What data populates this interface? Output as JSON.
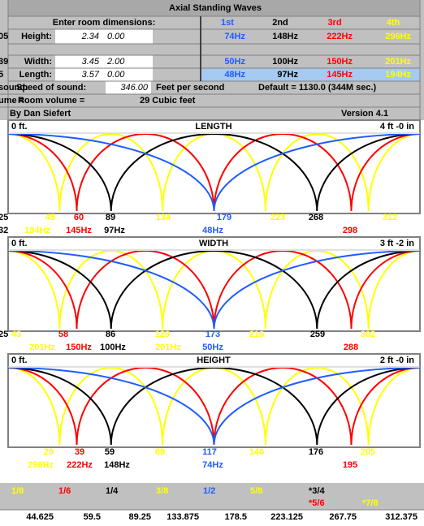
{
  "title": "Axial Standing Waves",
  "inputs": {
    "prompt": "Enter room dimensions:",
    "rows": [
      {
        "label": "Height:",
        "feet": "2.34",
        "inches": "0.00"
      },
      {
        "label": "Width:",
        "feet": "3.45",
        "inches": "2.00"
      },
      {
        "label": "Length:",
        "feet": "3.57",
        "inches": "0.00"
      }
    ]
  },
  "harmonics": {
    "headers": [
      "1st",
      "2nd",
      "3rd",
      "4th"
    ],
    "colors": [
      "#1f5cff",
      "#000000",
      "#ff0000",
      "#ffff00"
    ],
    "rows": [
      [
        "74Hz",
        "148Hz",
        "222Hz",
        "296Hz"
      ],
      [
        "50Hz",
        "100Hz",
        "150Hz",
        "201Hz"
      ],
      [
        "48Hz",
        "97Hz",
        "145Hz",
        "194Hz"
      ]
    ]
  },
  "speed": {
    "label": "Speed of sound:",
    "value": "346.00",
    "unit": "Feet per second",
    "default": "Default = 1130.0 (344M sec.)"
  },
  "volume": {
    "label": "Room volume =",
    "value": "29 Cubic feet"
  },
  "credits": {
    "author": "By Dan Siefert",
    "version": "Version 4.1"
  },
  "edge": [
    "05",
    "39",
    "5",
    "sound:",
    "ume =",
    "25",
    "32",
    "25"
  ],
  "plots": [
    {
      "start": "0 ft.",
      "title": "LENGTH",
      "end": "4 ft -0 in",
      "positions": [
        {
          "text": "45",
          "color": "#ffff00"
        },
        {
          "text": "60",
          "color": "#ff0000"
        },
        {
          "text": "89",
          "color": "#000000"
        },
        {
          "text": "134",
          "color": "#ffff00"
        },
        {
          "text": "179",
          "color": "#1f5cff"
        },
        {
          "text": "223",
          "color": "#ffff00"
        },
        {
          "text": "268",
          "color": "#000000"
        },
        {
          "text": "312",
          "color": "#ffff00"
        }
      ],
      "frequencies": [
        {
          "text": "194Hz",
          "color": "#ffff00"
        },
        {
          "text": "145Hz",
          "color": "#ff0000"
        },
        {
          "text": "97Hz",
          "color": "#000000"
        },
        {
          "text": "48Hz",
          "color": "#1f5cff"
        },
        {
          "text": "298",
          "color": "#ff0000"
        }
      ]
    },
    {
      "start": "0 ft.",
      "title": "WIDTH",
      "end": "3 ft -2 in",
      "positions": [
        {
          "text": "43",
          "color": "#ffff00"
        },
        {
          "text": "58",
          "color": "#ff0000"
        },
        {
          "text": "86",
          "color": "#000000"
        },
        {
          "text": "129",
          "color": "#ffff00"
        },
        {
          "text": "173",
          "color": "#1f5cff"
        },
        {
          "text": "216",
          "color": "#ffff00"
        },
        {
          "text": "259",
          "color": "#000000"
        },
        {
          "text": "302",
          "color": "#ffff00"
        }
      ],
      "frequencies": [
        {
          "text": "201Hz",
          "color": "#ffff00"
        },
        {
          "text": "150Hz",
          "color": "#ff0000"
        },
        {
          "text": "100Hz",
          "color": "#000000"
        },
        {
          "text": "201Hz",
          "color": "#ffff00"
        },
        {
          "text": "50Hz",
          "color": "#1f5cff"
        },
        {
          "text": "288",
          "color": "#ff0000"
        }
      ]
    },
    {
      "start": "0 ft.",
      "title": "HEIGHT",
      "end": "2 ft -0 in",
      "positions": [
        {
          "text": "29",
          "color": "#ffff00"
        },
        {
          "text": "39",
          "color": "#ff0000"
        },
        {
          "text": "59",
          "color": "#000000"
        },
        {
          "text": "88",
          "color": "#ffff00"
        },
        {
          "text": "117",
          "color": "#1f5cff"
        },
        {
          "text": "146",
          "color": "#ffff00"
        },
        {
          "text": "176",
          "color": "#000000"
        },
        {
          "text": "205",
          "color": "#ffff00"
        }
      ],
      "frequencies": [
        {
          "text": "296Hz",
          "color": "#ffff00"
        },
        {
          "text": "222Hz",
          "color": "#ff0000"
        },
        {
          "text": "148Hz",
          "color": "#000000"
        },
        {
          "text": "74Hz",
          "color": "#1f5cff"
        },
        {
          "text": "195",
          "color": "#ff0000"
        }
      ]
    }
  ],
  "fractions": [
    {
      "text": "1/8",
      "color": "#ffff00"
    },
    {
      "text": "1/6",
      "color": "#ff0000"
    },
    {
      "text": "1/4",
      "color": "#000000"
    },
    {
      "text": "3/8",
      "color": "#ffff00"
    },
    {
      "text": "1/2",
      "color": "#1f5cff"
    },
    {
      "text": "5/8",
      "color": "#ffff00"
    },
    {
      "text": "*3/4",
      "color": "#000000"
    },
    {
      "text": "*5/6",
      "color": "#ff0000"
    },
    {
      "text": "*7/8",
      "color": "#ffff00"
    }
  ],
  "distances": [
    "44.625",
    "59.5",
    "89.25",
    "133.875",
    "178.5",
    "223.125",
    "267.75",
    "312.375"
  ]
}
